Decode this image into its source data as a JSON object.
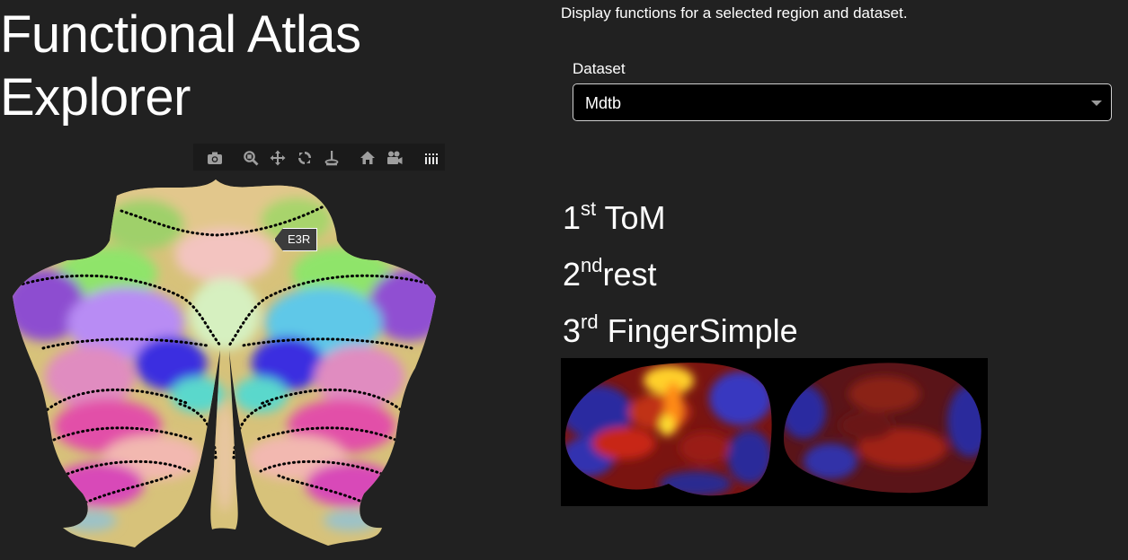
{
  "header": {
    "title": "Functional Atlas Explorer"
  },
  "description": "Display functions for a selected region and dataset.",
  "dataset": {
    "label": "Dataset",
    "selected": "Mdtb"
  },
  "hover_label": "E3R",
  "rankings": [
    {
      "ordinal": "1",
      "suffix": "st",
      "task": "ToM"
    },
    {
      "ordinal": "2",
      "suffix": "nd",
      "task": "rest"
    },
    {
      "ordinal": "3",
      "suffix": "rd",
      "task": "FingerSimple"
    }
  ],
  "modebar": {
    "buttons": [
      "camera-icon",
      "zoom-icon",
      "pan-icon",
      "orbit-icon",
      "turntable-icon",
      "home-icon",
      "video-camera-icon",
      "plotly-logo-icon"
    ]
  },
  "colors": {
    "background": "#212121",
    "select_background": "#000000",
    "select_border": "#d0d0d0"
  }
}
